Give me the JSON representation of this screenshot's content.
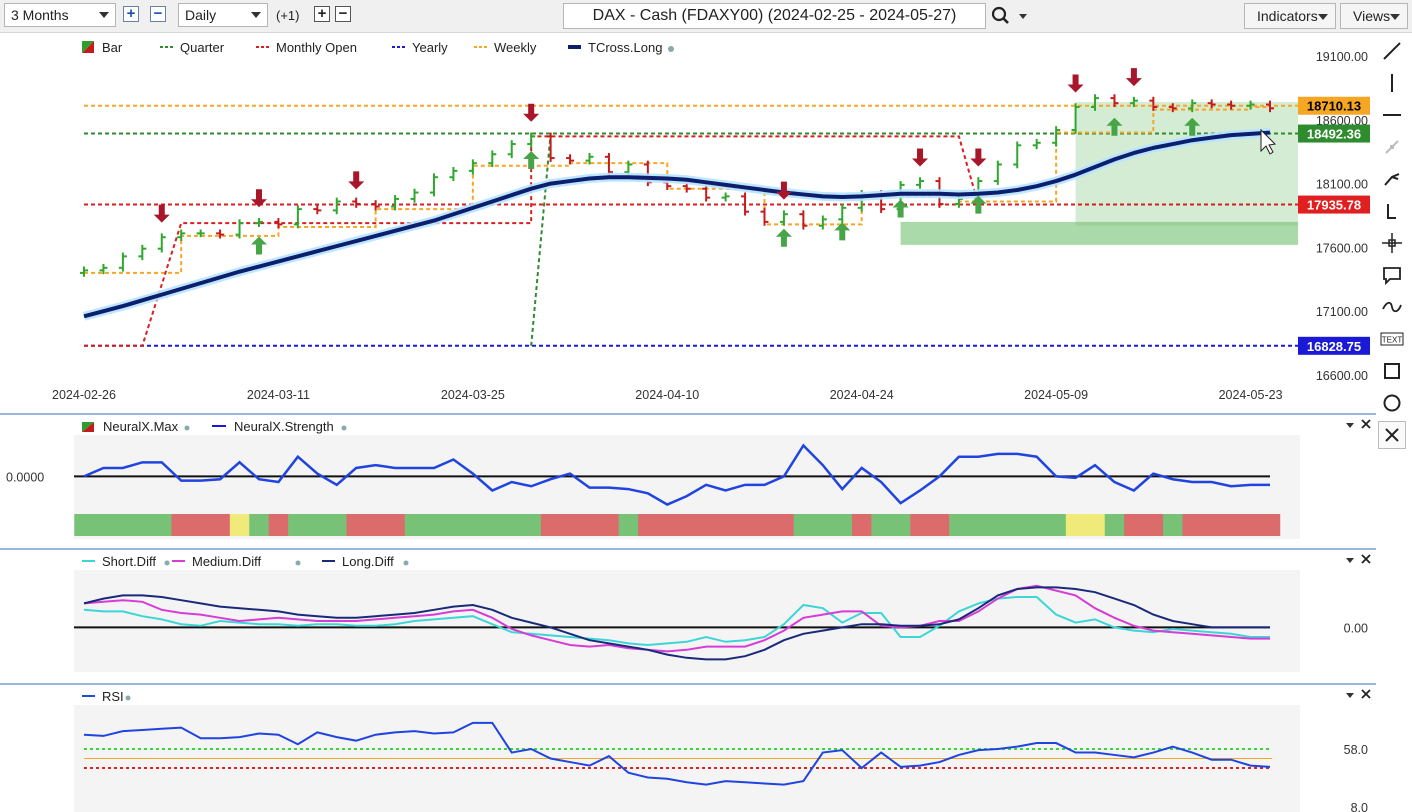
{
  "toolbar": {
    "range": "3 Months",
    "interval": "Daily",
    "offset": "(+1)",
    "chart_title": "DAX - Cash (FDAXY00) (2024-02-25 - 2024-05-27)",
    "indicators_label": "Indicators",
    "views_label": "Views"
  },
  "main_panel": {
    "legend": [
      {
        "label": "Bar",
        "color": "#2e9e2e",
        "style": "bar"
      },
      {
        "label": "Quarter",
        "color": "#2e8b2e",
        "style": "dashed"
      },
      {
        "label": "Monthly Open",
        "color": "#d62020",
        "style": "dashed"
      },
      {
        "label": "Yearly",
        "color": "#1a1ad6",
        "style": "dashed"
      },
      {
        "label": "Weekly",
        "color": "#f5a623",
        "style": "dashed"
      },
      {
        "label": "TCross.Long",
        "color": "#0c1f6e",
        "style": "solid"
      }
    ],
    "price_labels": [
      {
        "value": "18710.13",
        "bg": "#f5a623",
        "fg": "#000000"
      },
      {
        "value": "18492.36",
        "bg": "#2e8b2e",
        "fg": "#ffffff"
      },
      {
        "value": "17935.78",
        "bg": "#e02020",
        "fg": "#ffffff"
      },
      {
        "value": "16828.75",
        "bg": "#1a1ad6",
        "fg": "#ffffff"
      }
    ],
    "y_ticks": [
      "19100.00",
      "18600.00",
      "18100.00",
      "17600.00",
      "17100.00",
      "16600.00"
    ],
    "x_ticks": [
      "2024-02-26",
      "2024-03-11",
      "2024-03-25",
      "2024-04-10",
      "2024-04-24",
      "2024-05-09",
      "2024-05-23"
    ]
  },
  "neural_panel": {
    "legend": [
      {
        "label": "NeuralX.Max",
        "color": "#2e9e2e"
      },
      {
        "label": "NeuralX.Strength",
        "color": "#1a1ad6"
      }
    ],
    "zero_label": "0.0000"
  },
  "diff_panel": {
    "legend": [
      {
        "label": "Short.Diff",
        "color": "#3dd6d6"
      },
      {
        "label": "Medium.Diff",
        "color": "#d63dd6"
      },
      {
        "label": "Long.Diff",
        "color": "#1a2a7a"
      }
    ],
    "zero_label": "0.00"
  },
  "rsi_panel": {
    "legend": [
      {
        "label": "RSI",
        "color": "#1a4fd6"
      }
    ],
    "tick_top": "58.0",
    "tick_bottom": "8.0"
  },
  "chart_data": [
    {
      "type": "line",
      "title": "DAX - Cash (FDAXY00) (2024-02-25 - 2024-05-27)",
      "x": [
        "2024-02-26",
        "2024-02-27",
        "2024-02-28",
        "2024-02-29",
        "2024-03-01",
        "2024-03-04",
        "2024-03-05",
        "2024-03-06",
        "2024-03-07",
        "2024-03-08",
        "2024-03-11",
        "2024-03-12",
        "2024-03-13",
        "2024-03-14",
        "2024-03-15",
        "2024-03-18",
        "2024-03-19",
        "2024-03-20",
        "2024-03-21",
        "2024-03-22",
        "2024-03-25",
        "2024-03-26",
        "2024-03-27",
        "2024-03-28",
        "2024-04-02",
        "2024-04-03",
        "2024-04-04",
        "2024-04-05",
        "2024-04-08",
        "2024-04-09",
        "2024-04-10",
        "2024-04-11",
        "2024-04-12",
        "2024-04-15",
        "2024-04-16",
        "2024-04-17",
        "2024-04-18",
        "2024-04-19",
        "2024-04-22",
        "2024-04-23",
        "2024-04-24",
        "2024-04-25",
        "2024-04-26",
        "2024-04-29",
        "2024-04-30",
        "2024-05-02",
        "2024-05-03",
        "2024-05-06",
        "2024-05-07",
        "2024-05-08",
        "2024-05-09",
        "2024-05-10",
        "2024-05-13",
        "2024-05-14",
        "2024-05-15",
        "2024-05-16",
        "2024-05-17",
        "2024-05-20",
        "2024-05-21",
        "2024-05-22",
        "2024-05-23",
        "2024-05-24"
      ],
      "series": [
        {
          "name": "Bar",
          "values": [
            17420,
            17440,
            17530,
            17590,
            17680,
            17710,
            17710,
            17700,
            17790,
            17800,
            17780,
            17900,
            17890,
            17960,
            17940,
            17920,
            17980,
            18030,
            18150,
            18200,
            18260,
            18330,
            18410,
            18470,
            18300,
            18280,
            18310,
            18190,
            18250,
            18110,
            18080,
            18060,
            17990,
            18000,
            17880,
            17800,
            17860,
            17770,
            17820,
            17910,
            18020,
            17900,
            18090,
            18120,
            17940,
            17980,
            18120,
            18250,
            18400,
            18420,
            18520,
            18700,
            18770,
            18730,
            18750,
            18700,
            18690,
            18730,
            18720,
            18710,
            18720,
            18690
          ]
        },
        {
          "name": "TCross.Long",
          "values": [
            17060,
            17100,
            17140,
            17185,
            17230,
            17275,
            17320,
            17365,
            17410,
            17450,
            17490,
            17530,
            17570,
            17610,
            17650,
            17690,
            17730,
            17770,
            17810,
            17860,
            17910,
            17960,
            18010,
            18060,
            18100,
            18120,
            18140,
            18150,
            18150,
            18145,
            18140,
            18130,
            18110,
            18090,
            18070,
            18050,
            18030,
            18015,
            18000,
            17995,
            18000,
            18010,
            18020,
            18020,
            18020,
            18015,
            18020,
            18030,
            18050,
            18080,
            18120,
            18170,
            18230,
            18290,
            18340,
            18380,
            18410,
            18440,
            18460,
            18480,
            18490,
            18500
          ]
        }
      ],
      "reference_levels": [
        {
          "name": "Weekly",
          "value": 18710.13
        },
        {
          "name": "Quarter",
          "value": 18492.36
        },
        {
          "name": "Monthly Open",
          "value": 17935.78
        },
        {
          "name": "Yearly",
          "value": 16828.75
        }
      ],
      "ylim": [
        16600,
        19100
      ],
      "y_ticks": [
        19100,
        18600,
        18100,
        17600,
        17100,
        16600
      ],
      "x_ticks": [
        "2024-02-26",
        "2024-03-11",
        "2024-03-25",
        "2024-04-10",
        "2024-04-24",
        "2024-05-09",
        "2024-05-23"
      ],
      "legend": "top-left",
      "grid": false
    },
    {
      "type": "line",
      "series": [
        {
          "name": "NeuralX.Strength",
          "values": [
            0.0,
            0.3,
            0.3,
            0.5,
            0.5,
            -0.15,
            -0.15,
            -0.1,
            0.5,
            -0.1,
            -0.2,
            0.7,
            0.1,
            -0.3,
            0.3,
            0.4,
            0.3,
            0.3,
            0.3,
            0.6,
            0.1,
            -0.5,
            -0.2,
            -0.35,
            -0.1,
            0.1,
            -0.4,
            -0.4,
            -0.45,
            -0.6,
            -1.0,
            -0.7,
            -0.3,
            -0.5,
            -0.3,
            -0.3,
            0.0,
            1.1,
            0.4,
            -0.45,
            0.3,
            -0.2,
            -0.95,
            -0.5,
            0.0,
            0.7,
            0.7,
            0.8,
            0.8,
            0.7,
            0.0,
            -0.05,
            0.4,
            -0.2,
            -0.5,
            0.1,
            -0.1,
            -0.2,
            -0.2,
            -0.35,
            -0.3,
            -0.3
          ]
        },
        {
          "name": "NeuralX.Max",
          "values": [
            1,
            1,
            1,
            1,
            1,
            -1,
            -1,
            -1,
            0,
            1,
            -1,
            1,
            1,
            1,
            -1,
            -1,
            -1,
            1,
            1,
            1,
            1,
            1,
            1,
            1,
            -1,
            -1,
            -1,
            -1,
            1,
            -1,
            -1,
            -1,
            -1,
            -1,
            -1,
            -1,
            -1,
            1,
            1,
            1,
            -1,
            1,
            1,
            -1,
            -1,
            1,
            1,
            1,
            1,
            1,
            1,
            0,
            0,
            1,
            -1,
            -1,
            1,
            -1,
            -1,
            -1,
            -1,
            -1
          ]
        }
      ],
      "ylim": [
        -1.3,
        1.4
      ]
    },
    {
      "type": "line",
      "series": [
        {
          "name": "Short.Diff",
          "values": [
            0.55,
            0.5,
            0.5,
            0.35,
            0.25,
            0.1,
            0.05,
            0.2,
            0.15,
            0.1,
            0.1,
            0.05,
            0.1,
            0.1,
            0.05,
            0.05,
            0.1,
            0.2,
            0.25,
            0.3,
            0.35,
            0.1,
            -0.15,
            -0.2,
            -0.25,
            -0.3,
            -0.35,
            -0.4,
            -0.5,
            -0.55,
            -0.5,
            -0.45,
            -0.3,
            -0.45,
            -0.4,
            -0.3,
            0.1,
            0.7,
            0.6,
            0.15,
            0.45,
            0.45,
            -0.3,
            -0.3,
            0.05,
            0.5,
            0.75,
            0.9,
            0.95,
            0.95,
            0.4,
            0.15,
            0.25,
            0.0,
            -0.1,
            -0.15,
            -0.05,
            -0.1,
            -0.15,
            -0.2,
            -0.3,
            -0.3
          ]
        },
        {
          "name": "Medium.Diff",
          "values": [
            0.75,
            0.8,
            0.85,
            0.8,
            0.55,
            0.45,
            0.4,
            0.3,
            0.2,
            0.25,
            0.3,
            0.25,
            0.2,
            0.2,
            0.2,
            0.25,
            0.3,
            0.35,
            0.4,
            0.5,
            0.55,
            0.3,
            -0.05,
            -0.25,
            -0.4,
            -0.55,
            -0.6,
            -0.55,
            -0.65,
            -0.7,
            -0.75,
            -0.7,
            -0.6,
            -0.6,
            -0.6,
            -0.4,
            -0.1,
            0.3,
            0.4,
            0.5,
            0.5,
            0.05,
            0.0,
            0.05,
            0.2,
            0.2,
            0.5,
            0.9,
            1.2,
            1.3,
            1.15,
            1.0,
            0.6,
            0.3,
            0.05,
            -0.1,
            -0.15,
            -0.2,
            -0.25,
            -0.3,
            -0.35,
            -0.35
          ]
        },
        {
          "name": "Long.Diff",
          "values": [
            0.75,
            0.9,
            1.0,
            1.0,
            0.95,
            0.85,
            0.75,
            0.65,
            0.6,
            0.55,
            0.5,
            0.4,
            0.35,
            0.3,
            0.3,
            0.35,
            0.4,
            0.45,
            0.55,
            0.65,
            0.7,
            0.55,
            0.3,
            0.15,
            0.0,
            -0.2,
            -0.4,
            -0.5,
            -0.6,
            -0.7,
            -0.85,
            -0.95,
            -1.0,
            -1.0,
            -0.9,
            -0.7,
            -0.4,
            -0.2,
            -0.1,
            0.0,
            0.1,
            0.1,
            0.05,
            0.05,
            0.1,
            0.25,
            0.6,
            1.0,
            1.2,
            1.25,
            1.25,
            1.2,
            1.1,
            0.9,
            0.7,
            0.4,
            0.2,
            0.1,
            0.0,
            0.0,
            0.0,
            0.0
          ]
        }
      ],
      "ylim": [
        -1.3,
        1.7
      ]
    },
    {
      "type": "line",
      "series": [
        {
          "name": "RSI",
          "values": [
            70,
            69,
            73,
            74,
            75,
            76,
            67,
            67,
            68,
            71,
            70,
            62,
            72,
            68,
            65,
            70,
            72,
            73,
            71,
            72,
            80,
            80,
            55,
            58,
            50,
            47,
            44,
            52,
            38,
            34,
            33,
            30,
            28,
            31,
            30,
            29,
            28,
            31,
            55,
            57,
            42,
            55,
            43,
            44,
            47,
            53,
            57,
            58,
            60,
            63,
            63,
            55,
            55,
            53,
            51,
            55,
            60,
            55,
            49,
            49,
            44,
            43
          ]
        }
      ],
      "reference_levels": [
        {
          "name": "Upper",
          "value": 58
        },
        {
          "name": "Mid",
          "value": 50
        },
        {
          "name": "Lower",
          "value": 42
        }
      ],
      "ylim": [
        5,
        95
      ],
      "y_ticks": [
        "58.0",
        "8.0"
      ]
    }
  ]
}
